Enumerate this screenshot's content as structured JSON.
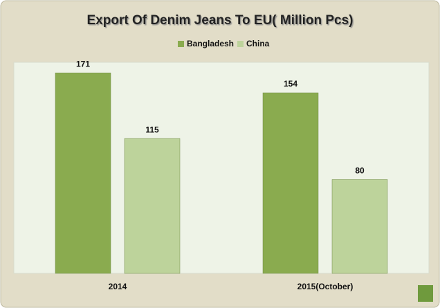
{
  "chart_data": {
    "type": "bar",
    "title": "Export Of Denim Jeans To EU( Million Pcs)",
    "categories": [
      "2014",
      "2015(October)"
    ],
    "series": [
      {
        "name": "Bangladesh",
        "color": "#8aab4f",
        "values": [
          171,
          154
        ]
      },
      {
        "name": "China",
        "color": "#bdd39b",
        "values": [
          115,
          80
        ]
      }
    ],
    "ylim": [
      0,
      180
    ]
  }
}
